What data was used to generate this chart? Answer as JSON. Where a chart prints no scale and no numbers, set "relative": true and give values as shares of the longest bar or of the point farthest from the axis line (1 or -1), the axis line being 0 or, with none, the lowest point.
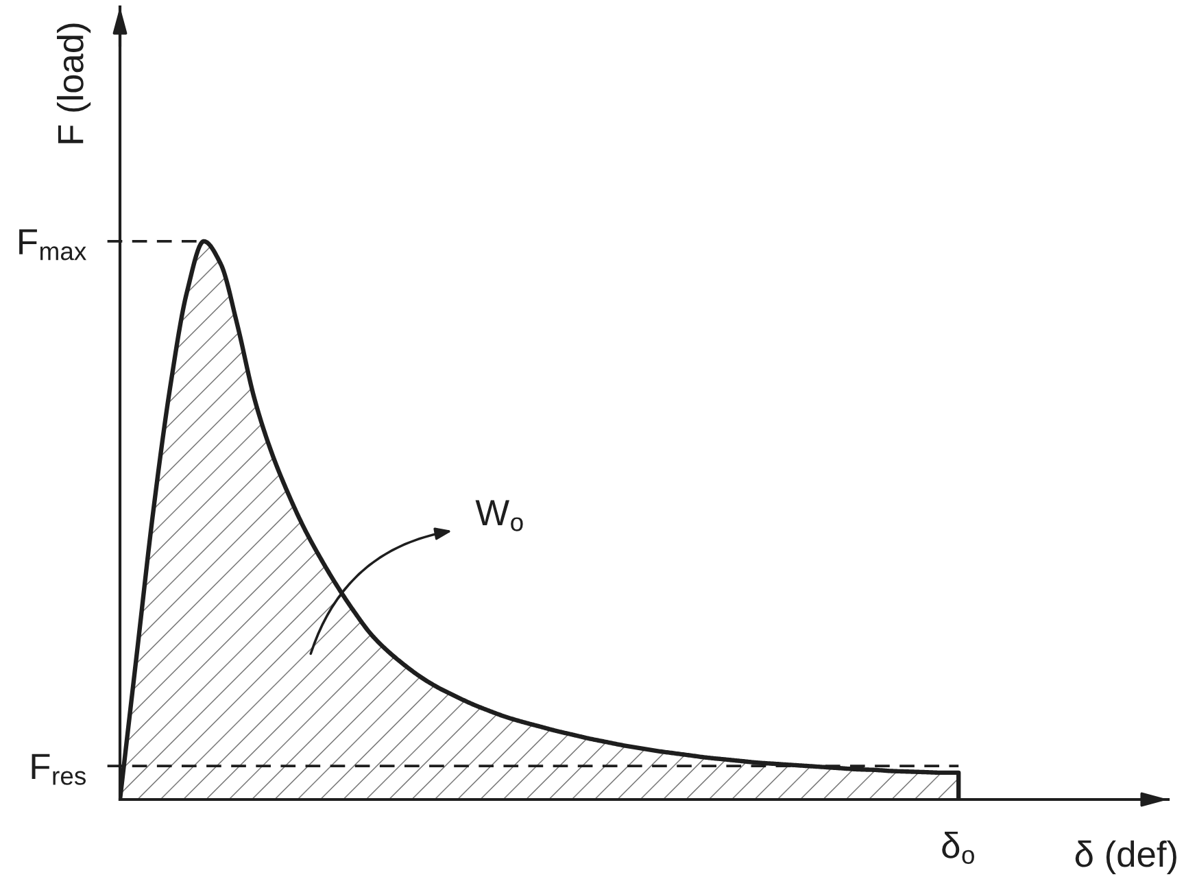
{
  "chart_data": {
    "type": "area",
    "relative": true,
    "xlabel": "δ (def)",
    "ylabel": "F (load)",
    "categories": [
      null,
      null,
      null,
      null,
      null,
      null,
      null,
      null,
      null,
      null,
      null,
      null,
      null,
      null,
      null,
      null,
      null,
      null,
      null,
      null,
      null,
      null,
      null,
      null,
      null,
      null,
      null,
      null,
      null,
      null,
      null,
      null,
      null,
      null,
      null,
      null,
      null,
      null,
      null,
      null,
      null,
      null,
      null,
      null,
      null,
      null,
      null,
      null,
      null,
      null,
      null
    ],
    "series": [
      {
        "color": "#1e1e1e",
        "values": [
          0,
          0.26,
          0.52,
          0.74,
          0.91,
          1,
          0.96,
          0.85,
          0.72,
          0.625,
          0.55,
          0.485,
          0.43,
          0.38,
          0.335,
          0.295,
          0.265,
          0.24,
          0.218,
          0.2,
          0.185,
          0.171,
          0.159,
          0.148,
          0.139,
          0.131,
          0.123,
          0.116,
          0.109,
          0.103,
          0.097,
          0.092,
          0.087,
          0.083,
          0.079,
          0.075,
          0.072,
          0.069,
          0.066,
          0.064,
          0.062,
          0.06,
          0.058,
          0.056,
          0.054,
          0.053,
          0.051,
          0.05,
          0.049,
          0.048,
          0.048
        ]
      }
    ],
    "ref_lines": [
      {
        "axis": "y",
        "value": 1,
        "label": "F$_{max}$",
        "line_style": "dashed",
        "color": "#1e1e1e"
      },
      {
        "axis": "y",
        "value": 0.06,
        "label": "F$_{res}$",
        "line_style": "dashed",
        "color": "#1e1e1e"
      }
    ],
    "annotations": [
      "W$_{o}$",
      {
        "text": "δ$_{o}$",
        "y": 0
      }
    ]
  }
}
